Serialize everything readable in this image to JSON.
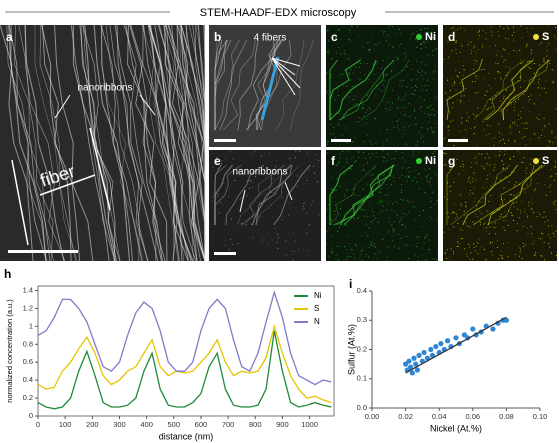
{
  "header": {
    "title": "STEM-HAADF-EDX microscopy"
  },
  "panels": [
    {
      "label": "a",
      "annotations": [
        "nanoribbons",
        "fiber"
      ]
    },
    {
      "label": "b",
      "annotations": [
        "4 fibers"
      ]
    },
    {
      "label": "c",
      "element": "Ni"
    },
    {
      "label": "d",
      "element": "S"
    },
    {
      "label": "e",
      "annotations": [
        "nanoribbons"
      ]
    },
    {
      "label": "f",
      "element": "Ni"
    },
    {
      "label": "g",
      "element": "S"
    }
  ],
  "chart_data": [
    {
      "type": "line",
      "label": "h",
      "x_label": "distance (nm)",
      "y_label": "normalized concentration (a.u.)",
      "x": [
        0,
        30,
        60,
        90,
        120,
        150,
        180,
        210,
        240,
        270,
        300,
        330,
        360,
        390,
        420,
        450,
        480,
        510,
        540,
        570,
        600,
        630,
        660,
        690,
        720,
        750,
        780,
        810,
        840,
        870,
        900,
        930,
        960,
        990,
        1020,
        1050,
        1080
      ],
      "series": [
        {
          "name": "Ni",
          "color": "#1e8a3a",
          "values": [
            0.15,
            0.1,
            0.08,
            0.1,
            0.2,
            0.5,
            0.72,
            0.45,
            0.15,
            0.1,
            0.1,
            0.12,
            0.2,
            0.5,
            0.7,
            0.3,
            0.12,
            0.1,
            0.1,
            0.15,
            0.25,
            0.55,
            0.7,
            0.3,
            0.12,
            0.1,
            0.1,
            0.12,
            0.3,
            0.95,
            0.5,
            0.15,
            0.1,
            0.12,
            0.15,
            0.12,
            0.1
          ]
        },
        {
          "name": "S",
          "color": "#e6c400",
          "values": [
            0.35,
            0.3,
            0.32,
            0.5,
            0.6,
            0.75,
            0.88,
            0.7,
            0.45,
            0.35,
            0.4,
            0.5,
            0.55,
            0.7,
            0.85,
            0.55,
            0.45,
            0.5,
            0.48,
            0.5,
            0.6,
            0.7,
            0.85,
            0.6,
            0.45,
            0.5,
            0.48,
            0.5,
            0.65,
            1.0,
            0.7,
            0.45,
            0.3,
            0.2,
            0.22,
            0.18,
            0.15
          ]
        },
        {
          "name": "N",
          "color": "#8478c8",
          "values": [
            0.9,
            0.95,
            1.1,
            1.3,
            1.3,
            1.2,
            1.05,
            0.8,
            0.55,
            0.5,
            0.6,
            0.9,
            1.15,
            1.27,
            1.2,
            0.95,
            0.6,
            0.5,
            0.5,
            0.6,
            0.95,
            1.2,
            1.3,
            1.2,
            0.85,
            0.55,
            0.5,
            0.7,
            1.05,
            1.38,
            1.1,
            0.7,
            0.45,
            0.4,
            0.35,
            0.4,
            0.38
          ]
        }
      ],
      "xlim": [
        0,
        1090
      ],
      "xticks": [
        0,
        100,
        200,
        300,
        400,
        500,
        600,
        700,
        800,
        900,
        1000
      ],
      "ylim": [
        0,
        1.45
      ],
      "yticks": [
        0,
        0.2,
        0.4,
        0.6,
        0.8,
        1,
        1.2,
        1.4
      ],
      "legend": "upper right"
    },
    {
      "type": "scatter",
      "label": "i",
      "x_label": "Nickel (At.%)",
      "y_label": "Sulfur (At.%)",
      "color": "#2f86d6",
      "x": [
        0.02,
        0.021,
        0.022,
        0.023,
        0.024,
        0.025,
        0.026,
        0.027,
        0.028,
        0.03,
        0.031,
        0.033,
        0.035,
        0.036,
        0.038,
        0.04,
        0.041,
        0.043,
        0.045,
        0.047,
        0.05,
        0.052,
        0.055,
        0.057,
        0.06,
        0.062,
        0.065,
        0.068,
        0.072,
        0.075,
        0.078,
        0.08
      ],
      "values": [
        0.15,
        0.13,
        0.16,
        0.14,
        0.12,
        0.17,
        0.15,
        0.13,
        0.18,
        0.16,
        0.19,
        0.17,
        0.2,
        0.18,
        0.21,
        0.19,
        0.22,
        0.2,
        0.23,
        0.21,
        0.24,
        0.22,
        0.25,
        0.24,
        0.27,
        0.25,
        0.26,
        0.28,
        0.27,
        0.29,
        0.3,
        0.3
      ],
      "fit": {
        "x": [
          0.02,
          0.08
        ],
        "y": [
          0.12,
          0.31
        ],
        "color": "#333333"
      },
      "xlim": [
        0,
        0.1
      ],
      "xticks": [
        {
          "value": 0,
          "label": "0.00"
        },
        {
          "value": 0.02,
          "label": "0.02"
        },
        {
          "value": 0.04,
          "label": "0.04"
        },
        {
          "value": 0.06,
          "label": "0.06"
        },
        {
          "value": 0.08,
          "label": "0.08"
        },
        {
          "value": 0.1,
          "label": "0.10"
        }
      ],
      "ylim": [
        0,
        0.4
      ],
      "yticks": [
        {
          "value": 0,
          "label": "0.0"
        },
        {
          "value": 0.1,
          "label": "0.1"
        },
        {
          "value": 0.2,
          "label": "0.2"
        },
        {
          "value": 0.3,
          "label": "0.3"
        },
        {
          "value": 0.4,
          "label": "0.4"
        }
      ]
    }
  ]
}
